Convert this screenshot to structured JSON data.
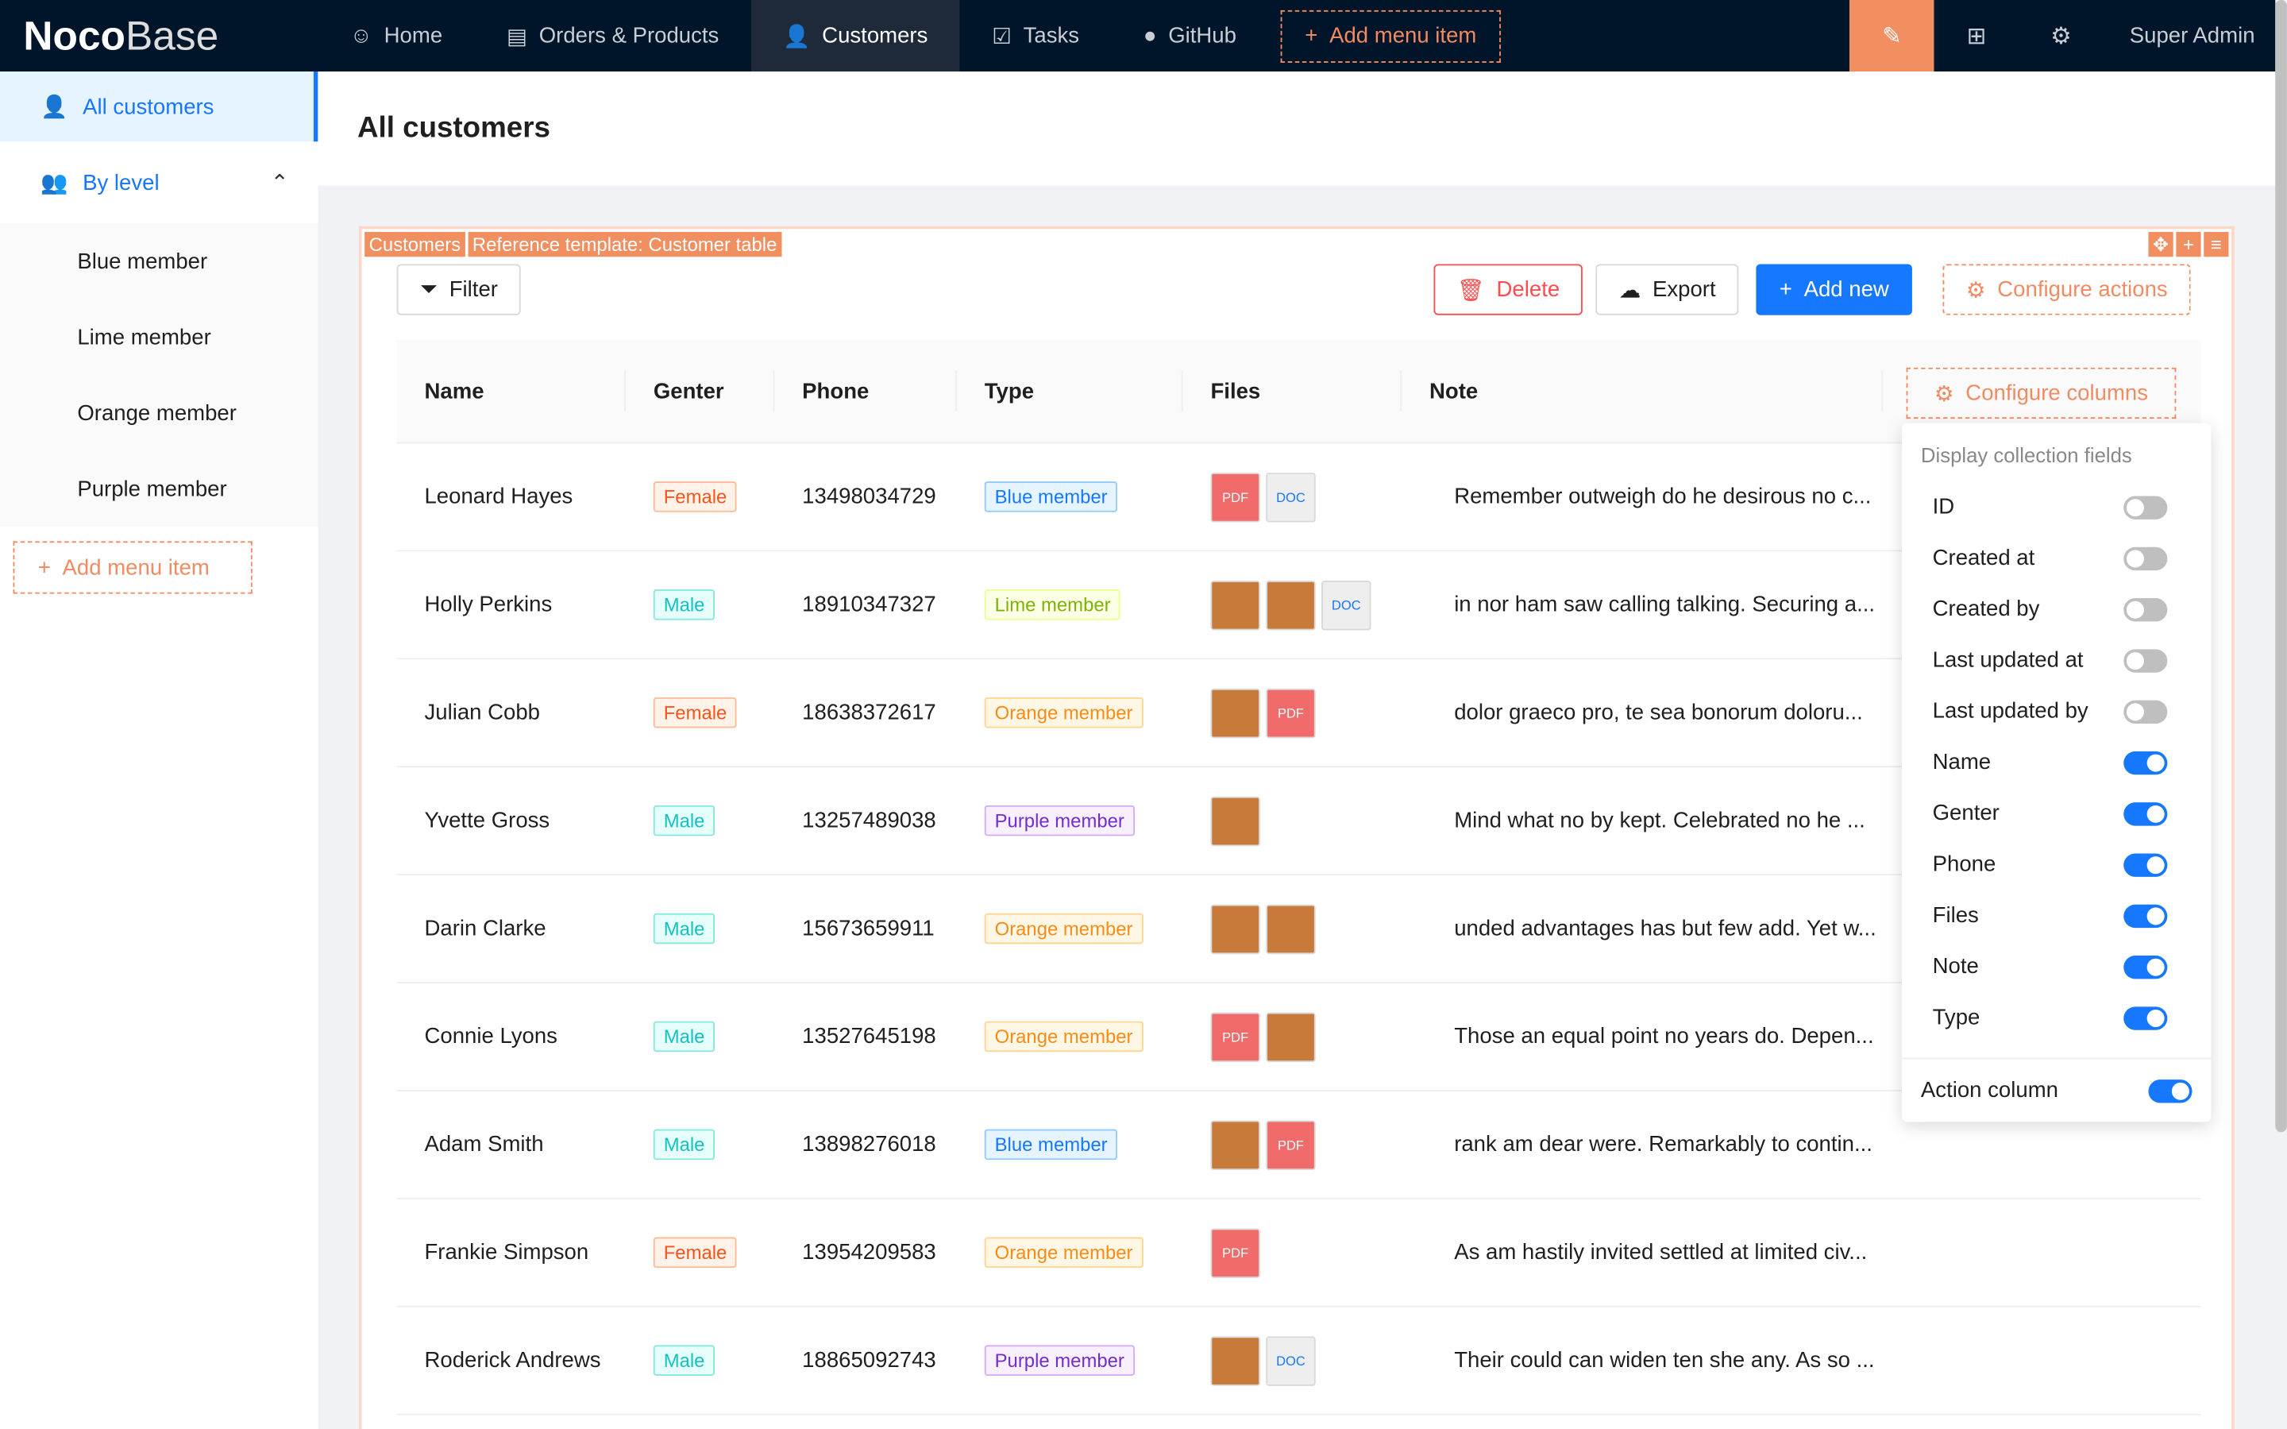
{
  "app": {
    "logo_bold": "Noco",
    "logo_light": "Base"
  },
  "nav": [
    {
      "label": "Home",
      "icon": "smile-icon"
    },
    {
      "label": "Orders & Products",
      "icon": "file-icon"
    },
    {
      "label": "Customers",
      "icon": "user-icon",
      "active": true
    },
    {
      "label": "Tasks",
      "icon": "check-square-icon"
    },
    {
      "label": "GitHub",
      "icon": "github-icon"
    }
  ],
  "add_menu_item": "Add menu item",
  "user": "Super Admin",
  "sidebar": {
    "all": "All customers",
    "group": "By level",
    "items": [
      "Blue member",
      "Lime member",
      "Orange member",
      "Purple member"
    ],
    "add": "Add menu item"
  },
  "page_title": "All customers",
  "block_tags": [
    "Customers",
    "Reference template: Customer table"
  ],
  "actions": {
    "filter": "Filter",
    "delete": "Delete",
    "export": "Export",
    "add_new": "Add new",
    "configure": "Configure actions"
  },
  "columns": [
    "Name",
    "Genter",
    "Phone",
    "Type",
    "Files",
    "Note"
  ],
  "configure_columns": "Configure columns",
  "rows": [
    {
      "name": "Leonard Hayes",
      "gender": "Female",
      "phone": "13498034729",
      "type": "Blue member",
      "files": [
        "pdf",
        "doc"
      ],
      "note": "Remember outweigh do he desirous no c..."
    },
    {
      "name": "Holly Perkins",
      "gender": "Male",
      "phone": "18910347327",
      "type": "Lime member",
      "files": [
        "img",
        "img",
        "doc"
      ],
      "note": "in nor ham saw calling talking. Securing a..."
    },
    {
      "name": "Julian Cobb",
      "gender": "Female",
      "phone": "18638372617",
      "type": "Orange member",
      "files": [
        "img",
        "pdf"
      ],
      "note": "dolor graeco pro, te sea bonorum doloru..."
    },
    {
      "name": "Yvette Gross",
      "gender": "Male",
      "phone": "13257489038",
      "type": "Purple member",
      "files": [
        "img"
      ],
      "note": "Mind what no by kept. Celebrated no he ..."
    },
    {
      "name": "Darin Clarke",
      "gender": "Male",
      "phone": "15673659911",
      "type": "Orange member",
      "files": [
        "img",
        "img"
      ],
      "note": "unded advantages has but few add. Yet w..."
    },
    {
      "name": "Connie Lyons",
      "gender": "Male",
      "phone": "13527645198",
      "type": "Orange member",
      "files": [
        "pdf",
        "img"
      ],
      "note": "Those an equal point no years do. Depen..."
    },
    {
      "name": "Adam Smith",
      "gender": "Male",
      "phone": "13898276018",
      "type": "Blue member",
      "files": [
        "img",
        "pdf"
      ],
      "note": "rank am dear were. Remarkably to contin..."
    },
    {
      "name": "Frankie Simpson",
      "gender": "Female",
      "phone": "13954209583",
      "type": "Orange member",
      "files": [
        "pdf"
      ],
      "note": "As am hastily invited settled at limited civ..."
    },
    {
      "name": "Roderick Andrews",
      "gender": "Male",
      "phone": "18865092743",
      "type": "Purple member",
      "files": [
        "img",
        "doc"
      ],
      "note": "Their could can widen ten she any. As so ..."
    }
  ],
  "popover": {
    "title": "Display collection fields",
    "fields": [
      {
        "label": "ID",
        "on": false
      },
      {
        "label": "Created at",
        "on": false
      },
      {
        "label": "Created by",
        "on": false
      },
      {
        "label": "Last updated at",
        "on": false
      },
      {
        "label": "Last updated by",
        "on": false
      },
      {
        "label": "Name",
        "on": true
      },
      {
        "label": "Genter",
        "on": true
      },
      {
        "label": "Phone",
        "on": true
      },
      {
        "label": "Files",
        "on": true
      },
      {
        "label": "Note",
        "on": true
      },
      {
        "label": "Type",
        "on": true
      }
    ],
    "action_column": "Action column",
    "action_column_on": true
  },
  "colors": {
    "accent": "#1677ff",
    "highlight": "#f18f61",
    "header": "#001529"
  }
}
